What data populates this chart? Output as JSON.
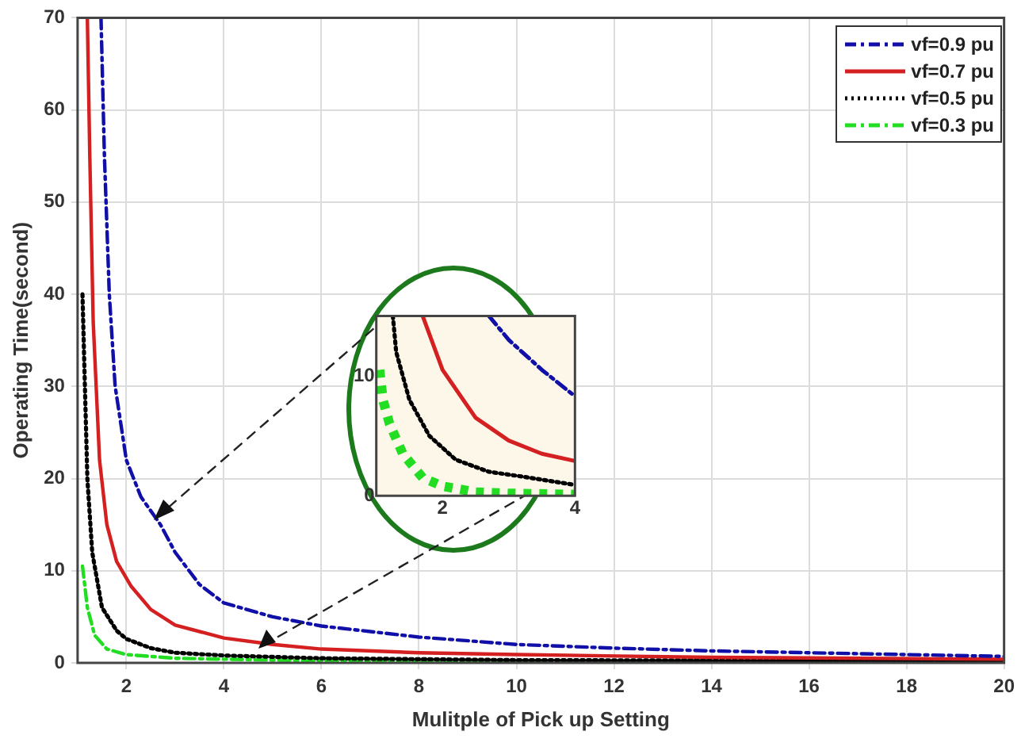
{
  "chart_data": [
    {
      "type": "line",
      "xlabel": "Mulitple of Pick up Setting",
      "ylabel": "Operating Time(second)",
      "xlim": [
        1,
        20
      ],
      "xticks": [
        2,
        4,
        6,
        8,
        10,
        12,
        14,
        16,
        18,
        20
      ],
      "ylim": [
        0,
        70
      ],
      "yticks": [
        0,
        10,
        20,
        30,
        40,
        50,
        60,
        70
      ],
      "grid": true,
      "legend": "top right",
      "marker": "none",
      "series": [
        {
          "name": "vf=0.9 pu",
          "color": "#1010a8",
          "line_style": "dashed",
          "x": [
            1.48,
            1.55,
            1.65,
            1.77,
            2,
            2.3,
            2.7,
            3,
            3.5,
            4,
            5,
            6,
            8,
            10,
            12,
            14,
            16,
            18,
            20
          ],
          "values": [
            70,
            55,
            40,
            30,
            22,
            18,
            15,
            12,
            8.5,
            6.5,
            5,
            4,
            2.8,
            2,
            1.6,
            1.3,
            1.1,
            0.9,
            0.7
          ]
        },
        {
          "name": "vf=0.7 pu",
          "color": "#d42020",
          "line_style": "solid",
          "x": [
            1.2,
            1.25,
            1.32,
            1.45,
            1.6,
            1.8,
            2.1,
            2.5,
            3,
            4,
            5,
            6,
            8,
            10,
            14,
            20
          ],
          "values": [
            70,
            55,
            37,
            22,
            15,
            11,
            8.3,
            5.8,
            4.1,
            2.7,
            2,
            1.5,
            1.1,
            0.9,
            0.6,
            0.4
          ]
        },
        {
          "name": "vf=0.5 pu",
          "color": "#000000",
          "line_style": "dotted",
          "x": [
            1.1,
            1.15,
            1.2,
            1.3,
            1.5,
            1.8,
            2,
            2.5,
            3,
            4,
            6,
            10,
            20
          ],
          "values": [
            40,
            30,
            20,
            12,
            6,
            3.5,
            2.6,
            1.6,
            1.1,
            0.8,
            0.5,
            0.3,
            0.2
          ]
        },
        {
          "name": "vf=0.3 pu",
          "color": "#22dd22",
          "line_style": "dashed",
          "x": [
            1.1,
            1.2,
            1.35,
            1.6,
            2,
            3,
            4,
            6,
            10,
            20
          ],
          "values": [
            10.5,
            6,
            3,
            1.5,
            0.9,
            0.5,
            0.4,
            0.2,
            0.1,
            0.1
          ]
        }
      ]
    },
    {
      "type": "line",
      "xlim": [
        1,
        4
      ],
      "xticks": [
        2,
        4
      ],
      "ylim": [
        0,
        15
      ],
      "yticks": [
        0,
        10
      ],
      "grid": false,
      "legend": false,
      "marker": "none",
      "series": [
        {
          "color": "#1010a8",
          "line_style": "dashed",
          "x": [
            2.7,
            3,
            3.5,
            4
          ],
          "values": [
            15,
            13,
            10.5,
            8.3
          ]
        },
        {
          "color": "#d42020",
          "line_style": "solid",
          "x": [
            1.7,
            2,
            2.5,
            3,
            3.5,
            4
          ],
          "values": [
            15,
            10.5,
            6.5,
            4.6,
            3.5,
            2.9
          ]
        },
        {
          "color": "#000000",
          "line_style": "dotted",
          "x": [
            1.25,
            1.3,
            1.5,
            1.8,
            2.2,
            2.7,
            3.2,
            4
          ],
          "values": [
            15,
            12,
            8,
            5,
            3,
            2,
            1.6,
            0.9
          ]
        },
        {
          "color": "#22dd22",
          "line_style": "dotted",
          "x": [
            1.05,
            1.1,
            1.2,
            1.4,
            1.7,
            2,
            2.5,
            3,
            4
          ],
          "values": [
            10.5,
            8,
            6,
            3.5,
            1.5,
            0.8,
            0.3,
            0.2,
            0.1
          ]
        }
      ]
    }
  ]
}
